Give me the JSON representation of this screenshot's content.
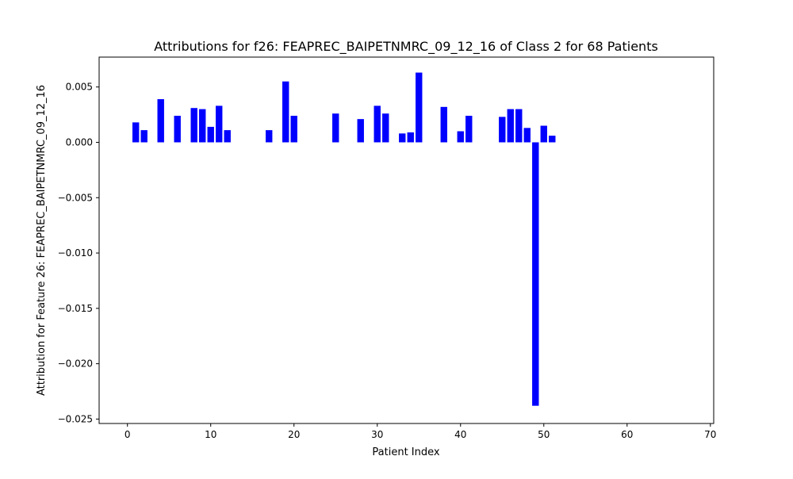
{
  "chart_data": {
    "type": "bar",
    "title": "Attributions for f26: FEAPREC_BAIPETNMRC_09_12_16 of Class 2 for 68 Patients",
    "xlabel": "Patient Index",
    "ylabel": "Attribution for Feature 26: FEAPREC_BAIPETNMRC_09_12_16",
    "xlim": [
      -3.4,
      70.4
    ],
    "ylim": [
      -0.0254,
      0.0077
    ],
    "xticks": [
      0,
      10,
      20,
      30,
      40,
      50,
      60,
      70
    ],
    "xtick_labels": [
      "0",
      "10",
      "20",
      "30",
      "40",
      "50",
      "60",
      "70"
    ],
    "yticks": [
      0.005,
      0.0,
      -0.005,
      -0.01,
      -0.015,
      -0.02,
      -0.025
    ],
    "ytick_labels": [
      "0.005",
      "0.000",
      "−0.005",
      "−0.010",
      "−0.015",
      "−0.020",
      "−0.025"
    ],
    "grid": false,
    "bar_color": "#0000ff",
    "x": [
      1,
      2,
      4,
      6,
      8,
      9,
      10,
      11,
      12,
      17,
      19,
      20,
      25,
      28,
      30,
      31,
      33,
      34,
      35,
      38,
      40,
      41,
      45,
      46,
      47,
      48,
      49,
      50,
      51
    ],
    "values": [
      0.0018,
      0.0011,
      0.0039,
      0.0024,
      0.0031,
      0.003,
      0.0014,
      0.0033,
      0.0011,
      0.0011,
      0.0055,
      0.0024,
      0.0026,
      0.0021,
      0.0033,
      0.0026,
      0.0008,
      0.0009,
      0.0063,
      0.0032,
      0.001,
      0.0024,
      0.0023,
      0.003,
      0.003,
      0.0013,
      -0.0238,
      0.0015,
      0.0006
    ]
  }
}
